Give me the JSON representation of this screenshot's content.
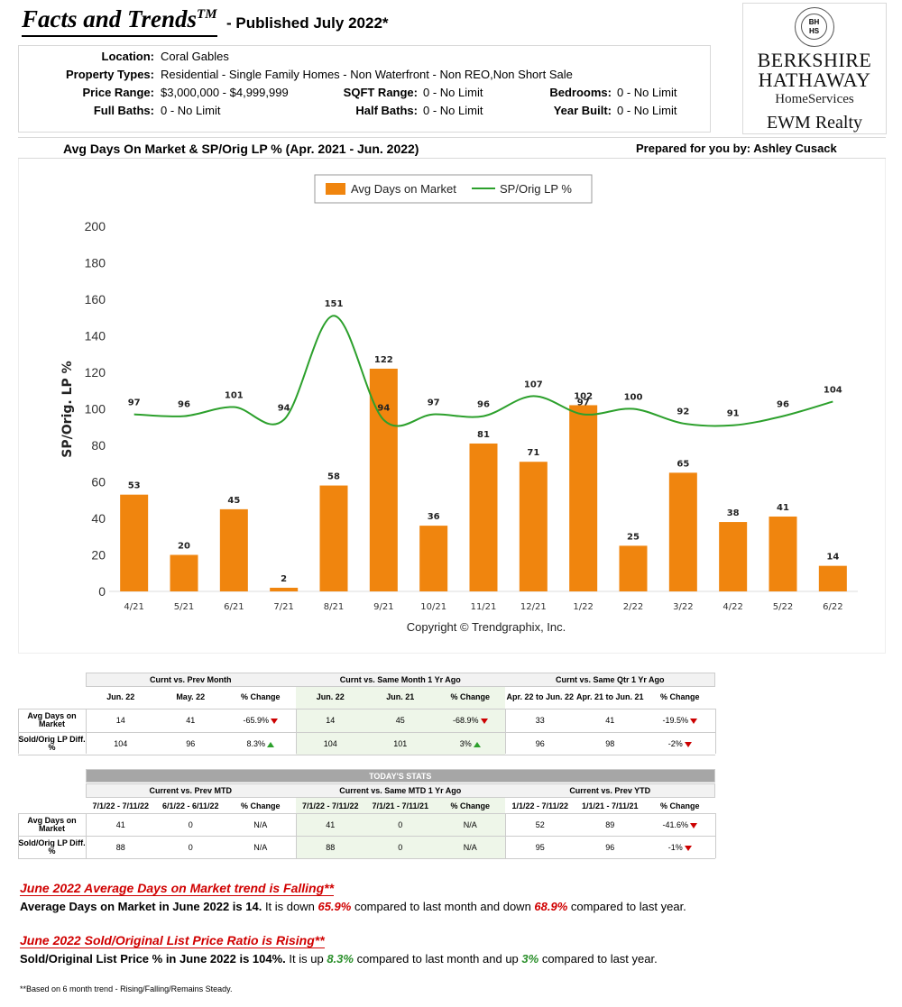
{
  "header": {
    "brand": "Facts and Trends",
    "tm": "TM",
    "published": "- Published July 2022*"
  },
  "criteria": {
    "location_label": "Location:",
    "location": "Coral Gables",
    "property_types_label": "Property Types:",
    "property_types": "Residential - Single Family Homes - Non Waterfront - Non REO,Non Short Sale",
    "price_range_label": "Price Range:",
    "price_range": "$3,000,000 - $4,999,999",
    "sqft_label": "SQFT Range:",
    "sqft": "0 - No Limit",
    "bedrooms_label": "Bedrooms:",
    "bedrooms": "0 - No Limit",
    "full_baths_label": "Full Baths:",
    "full_baths": "0 - No Limit",
    "half_baths_label": "Half Baths:",
    "half_baths": "0 - No Limit",
    "year_built_label": "Year Built:",
    "year_built": "0 - No Limit"
  },
  "logo": {
    "seal_l1": "BH",
    "seal_l2": "HS",
    "line1": "BERKSHIRE",
    "line2": "HATHAWAY",
    "line3": "HomeServices",
    "line4": "EWM Realty"
  },
  "chart_title": "Avg Days On Market & SP/Orig LP % (Apr. 2021 - Jun. 2022)",
  "prepared_by": "Prepared for you by: Ashley Cusack",
  "chart_data": {
    "type": "bar",
    "categories": [
      "4/21",
      "5/21",
      "6/21",
      "7/21",
      "8/21",
      "9/21",
      "10/21",
      "11/21",
      "12/21",
      "1/22",
      "2/22",
      "3/22",
      "4/22",
      "5/22",
      "6/22"
    ],
    "series": [
      {
        "name": "Avg Days on Market",
        "type": "bar",
        "color": "#f0850e",
        "values": [
          53,
          20,
          45,
          2,
          58,
          122,
          36,
          81,
          71,
          102,
          25,
          65,
          38,
          41,
          14
        ]
      },
      {
        "name": "SP/Orig LP %",
        "type": "line",
        "color": "#2ca02c",
        "values": [
          97,
          96,
          101,
          94,
          151,
          94,
          97,
          96,
          107,
          97,
          100,
          92,
          91,
          96,
          104
        ]
      }
    ],
    "ylabel": "SP/Orig. LP %",
    "ylim": [
      0,
      200
    ],
    "yticks": [
      0,
      20,
      40,
      60,
      80,
      100,
      120,
      140,
      160,
      180,
      200
    ],
    "grid": false,
    "legend": "top-center",
    "copyright": "Copyright © Trendgraphix, Inc."
  },
  "table1": {
    "groups": [
      "Curnt vs. Prev Month",
      "Curnt vs. Same Month 1 Yr Ago",
      "Curnt vs. Same Qtr 1 Yr Ago"
    ],
    "cols": [
      "Jun. 22",
      "May. 22",
      "% Change",
      "Jun. 22",
      "Jun. 21",
      "% Change",
      "Apr. 22 to Jun. 22",
      "Apr. 21 to Jun. 21",
      "% Change"
    ],
    "rows": [
      {
        "label": "Avg Days on Market",
        "cells": [
          "14",
          "41",
          "-65.9%",
          "14",
          "45",
          "-68.9%",
          "33",
          "41",
          "-19.5%"
        ],
        "arrows": [
          "",
          "",
          "down",
          "",
          "",
          "down",
          "",
          "",
          "down"
        ]
      },
      {
        "label": "Sold/Orig LP Diff. %",
        "cells": [
          "104",
          "96",
          "8.3%",
          "104",
          "101",
          "3%",
          "96",
          "98",
          "-2%"
        ],
        "arrows": [
          "",
          "",
          "up",
          "",
          "",
          "up",
          "",
          "",
          "down"
        ]
      }
    ]
  },
  "table2": {
    "band": "TODAY'S STATS",
    "groups": [
      "Current vs. Prev MTD",
      "Current vs. Same MTD 1 Yr Ago",
      "Current vs. Prev YTD"
    ],
    "cols": [
      "7/1/22 - 7/11/22",
      "6/1/22 - 6/11/22",
      "% Change",
      "7/1/22 - 7/11/22",
      "7/1/21 - 7/11/21",
      "% Change",
      "1/1/22 - 7/11/22",
      "1/1/21 - 7/11/21",
      "% Change"
    ],
    "rows": [
      {
        "label": "Avg Days on Market",
        "cells": [
          "41",
          "0",
          "N/A",
          "41",
          "0",
          "N/A",
          "52",
          "89",
          "-41.6%"
        ],
        "arrows": [
          "",
          "",
          "",
          "",
          "",
          "",
          "",
          "",
          "down"
        ]
      },
      {
        "label": "Sold/Orig LP Diff. %",
        "cells": [
          "88",
          "0",
          "N/A",
          "88",
          "0",
          "N/A",
          "95",
          "96",
          "-1%"
        ],
        "arrows": [
          "",
          "",
          "",
          "",
          "",
          "",
          "",
          "",
          "down"
        ]
      }
    ]
  },
  "summary": {
    "head1": "June 2022 Average Days on Market trend is Falling**",
    "s1_bold": "Average Days on Market in June 2022 is 14.",
    "s1_a": " It is down ",
    "s1_v1": "65.9%",
    "s1_b": " compared to last month and down ",
    "s1_v2": "68.9%",
    "s1_c": " compared to last year.",
    "head2": "June 2022 Sold/Original List Price Ratio is Rising**",
    "s2_bold": "Sold/Original List Price % in June 2022 is 104%.",
    "s2_a": " It is up ",
    "s2_v1": "8.3%",
    "s2_b": " compared to last month and up ",
    "s2_v2": "3%",
    "s2_c": " compared to last year.",
    "footnote": "**Based on 6 month trend - Rising/Falling/Remains Steady."
  }
}
